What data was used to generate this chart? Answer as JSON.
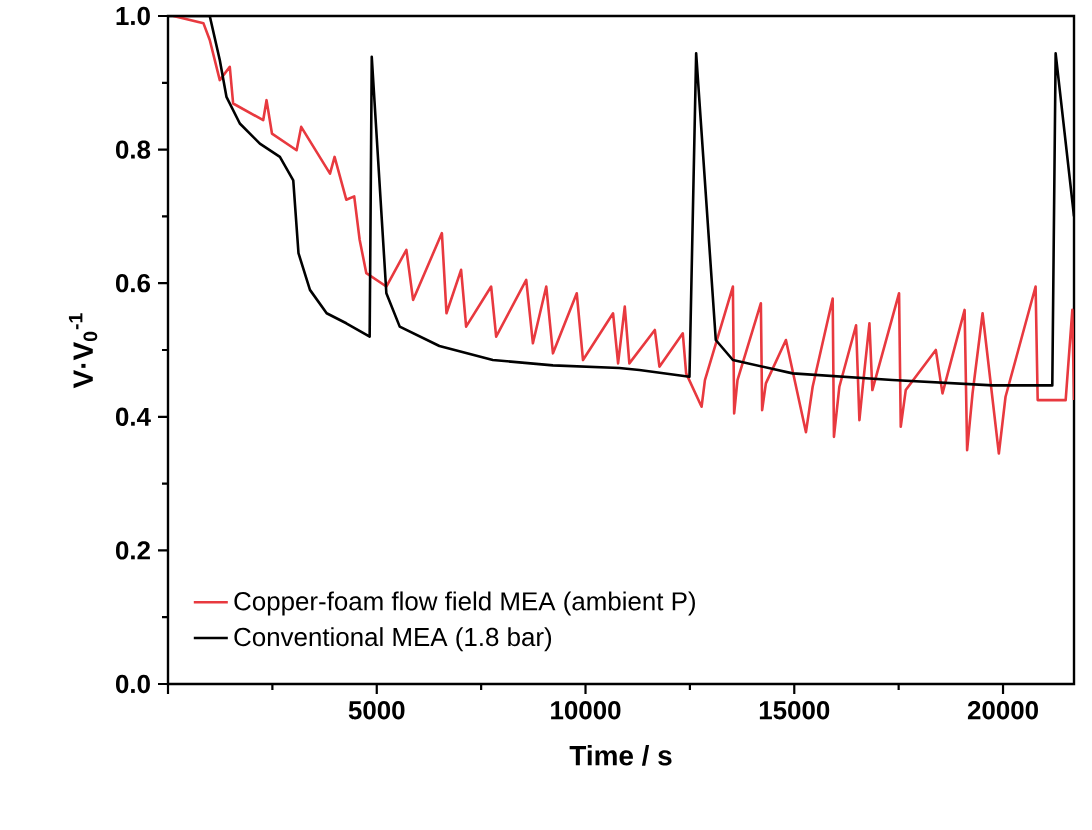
{
  "chart_data": {
    "type": "line",
    "xlabel": "Time /  s",
    "ylabel": "V·V$_{0}$$^{-1}$",
    "xlim": [
      0,
      21700
    ],
    "ylim": [
      0,
      1
    ],
    "xticks": [
      {
        "value": 0,
        "label": null
      },
      5000,
      10000,
      15000,
      20000
    ],
    "yticks": [
      {
        "value": 0,
        "label": "0.0"
      },
      0.2,
      0.4,
      0.6,
      0.8,
      {
        "value": 1,
        "label": "1.0"
      }
    ],
    "legend": "bottom left",
    "grid": false,
    "marker": "none",
    "line_style": "solid",
    "series": [
      {
        "name": "Copper-foam flow field MEA (ambient P)",
        "color": "#e8393f",
        "x": [
          130,
          850,
          1000,
          1240,
          1480,
          1560,
          2280,
          2360,
          2490,
          3080,
          3190,
          3880,
          3990,
          4270,
          4460,
          4590,
          4750,
          5230,
          5710,
          5870,
          6560,
          6670,
          7020,
          7140,
          7740,
          7860,
          8580,
          8740,
          9060,
          9220,
          9790,
          9940,
          10660,
          10780,
          10940,
          11050,
          11660,
          11770,
          12330,
          12410,
          12780,
          12860,
          13530,
          13560,
          13640,
          14200,
          14230,
          14320,
          14800,
          15280,
          15440,
          15920,
          15950,
          16080,
          16480,
          16560,
          16640,
          16800,
          16870,
          17510,
          17550,
          17670,
          18390,
          18550,
          19080,
          19140,
          19270,
          19510,
          19900,
          20060,
          20780,
          20830,
          21500,
          21660,
          21700
        ],
        "values": [
          1.0,
          0.989,
          0.964,
          0.904,
          0.924,
          0.869,
          0.844,
          0.874,
          0.824,
          0.799,
          0.834,
          0.764,
          0.789,
          0.725,
          0.73,
          0.665,
          0.615,
          0.595,
          0.65,
          0.575,
          0.675,
          0.555,
          0.62,
          0.535,
          0.595,
          0.52,
          0.605,
          0.51,
          0.595,
          0.495,
          0.585,
          0.485,
          0.555,
          0.48,
          0.565,
          0.48,
          0.53,
          0.475,
          0.525,
          0.465,
          0.415,
          0.455,
          0.595,
          0.405,
          0.455,
          0.57,
          0.41,
          0.45,
          0.515,
          0.377,
          0.445,
          0.577,
          0.37,
          0.445,
          0.537,
          0.395,
          0.445,
          0.54,
          0.44,
          0.585,
          0.385,
          0.44,
          0.5,
          0.435,
          0.56,
          0.35,
          0.435,
          0.555,
          0.345,
          0.43,
          0.595,
          0.425,
          0.425,
          0.56,
          0.425
        ]
      },
      {
        "name": "Conventional MEA (1.8 bar)",
        "color": "#000000",
        "x": [
          0,
          1000,
          1240,
          1400,
          1720,
          2200,
          2680,
          3000,
          3125,
          3400,
          3800,
          4270,
          4830,
          4880,
          5230,
          5550,
          6500,
          7780,
          9220,
          10810,
          11290,
          12490,
          12650,
          13120,
          13530,
          14960,
          17350,
          19750,
          21180,
          21260,
          21700
        ],
        "values": [
          1.0,
          1.0,
          0.934,
          0.879,
          0.839,
          0.809,
          0.789,
          0.754,
          0.645,
          0.59,
          0.555,
          0.54,
          0.52,
          0.939,
          0.585,
          0.535,
          0.506,
          0.485,
          0.477,
          0.473,
          0.47,
          0.46,
          0.944,
          0.515,
          0.485,
          0.465,
          0.455,
          0.447,
          0.447,
          0.944,
          0.7
        ]
      }
    ]
  }
}
